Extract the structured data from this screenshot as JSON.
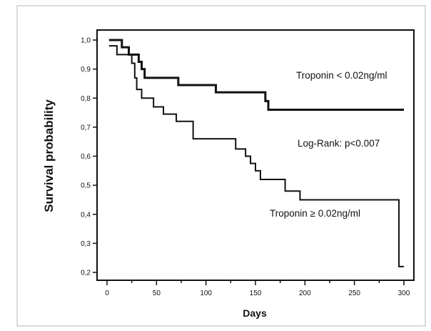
{
  "chart_data": {
    "type": "line",
    "xlabel": "Days",
    "ylabel": "Survival probability",
    "xlim": [
      0,
      300
    ],
    "ylim": [
      0.2,
      1.0
    ],
    "x_ticks": [
      0,
      50,
      100,
      150,
      200,
      250,
      300
    ],
    "x_tick_labels": [
      "0",
      "50",
      "100",
      "150",
      "200",
      "250",
      "300"
    ],
    "y_ticks": [
      1.0,
      0.9,
      0.8,
      0.7,
      0.6,
      0.5,
      0.4,
      0.3,
      0.2
    ],
    "y_tick_labels": [
      "1,0",
      "0,9",
      "0,8",
      "0,7",
      "0,6",
      "0,5",
      "0,4",
      "0,3",
      "0,2"
    ],
    "grid": false,
    "series": [
      {
        "step_x": [
          2,
          15,
          22,
          32,
          35,
          38,
          40,
          72,
          110,
          160,
          163,
          300
        ],
        "step_y": [
          1.0,
          0.975,
          0.95,
          0.925,
          0.9,
          0.87,
          0.87,
          0.845,
          0.82,
          0.79,
          0.76,
          0.76
        ],
        "stroke_width": 3
      },
      {
        "step_x": [
          2,
          10,
          25,
          28,
          30,
          35,
          47,
          57,
          70,
          87,
          130,
          140,
          145,
          150,
          155,
          180,
          195,
          295,
          300
        ],
        "step_y": [
          0.98,
          0.95,
          0.92,
          0.87,
          0.83,
          0.8,
          0.77,
          0.745,
          0.72,
          0.66,
          0.625,
          0.6,
          0.575,
          0.55,
          0.52,
          0.48,
          0.45,
          0.22,
          0.22
        ],
        "stroke_width": 2
      }
    ],
    "annotations": [
      "Troponin <  0.02ng/ml",
      "Log-Rank: p<0.007",
      "Troponin ≥ 0.02ng/ml"
    ]
  }
}
